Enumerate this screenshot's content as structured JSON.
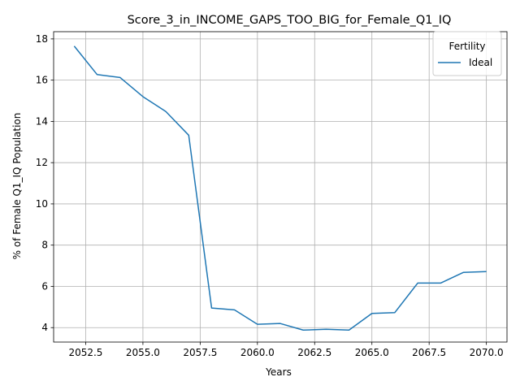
{
  "chart_data": {
    "type": "line",
    "title": "Score_3_in_INCOME_GAPS_TOO_BIG_for_Female_Q1_IQ",
    "xlabel": "Years",
    "ylabel": "% of Female Q1_IQ Population",
    "xlim": [
      2051.1,
      2070.9
    ],
    "ylim": [
      3.3,
      18.35
    ],
    "x_ticks": [
      2052.5,
      2055.0,
      2057.5,
      2060.0,
      2062.5,
      2065.0,
      2067.5,
      2070.0
    ],
    "x_tick_labels": [
      "2052.5",
      "2055.0",
      "2057.5",
      "2060.0",
      "2062.5",
      "2065.0",
      "2067.5",
      "2070.0"
    ],
    "y_ticks": [
      4,
      6,
      8,
      10,
      12,
      14,
      16,
      18
    ],
    "y_tick_labels": [
      "4",
      "6",
      "8",
      "10",
      "12",
      "14",
      "16",
      "18"
    ],
    "grid": true,
    "legend": {
      "title": "Fertility",
      "position": "top-right"
    },
    "series": [
      {
        "name": "Ideal",
        "color": "#1f77b4",
        "x": [
          2052,
          2053,
          2054,
          2055,
          2056,
          2057,
          2058,
          2059,
          2060,
          2061,
          2062,
          2063,
          2064,
          2065,
          2066,
          2067,
          2068,
          2069,
          2070
        ],
        "y": [
          17.65,
          16.27,
          16.13,
          15.2,
          14.48,
          13.33,
          4.95,
          4.86,
          4.16,
          4.2,
          3.88,
          3.92,
          3.88,
          4.69,
          4.73,
          6.16,
          6.16,
          6.68,
          6.72
        ]
      }
    ]
  }
}
